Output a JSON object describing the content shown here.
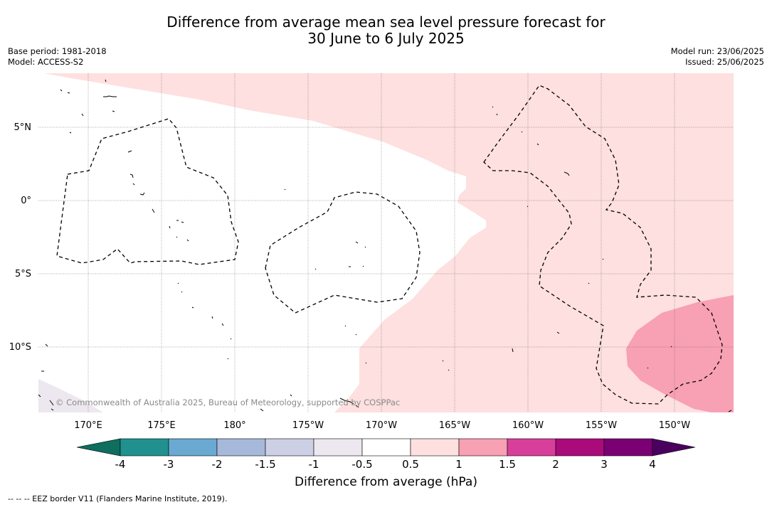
{
  "title": {
    "line1": "Difference from average mean sea level pressure forecast for",
    "line2": "30 June to 6 July 2025"
  },
  "meta_left": {
    "base_period": "Base period: 1981-2018",
    "model": "Model: ACCESS-S2"
  },
  "meta_right": {
    "model_run": "Model run: 23/06/2025",
    "issued": "Issued: 25/06/2025"
  },
  "map": {
    "copyright": "© Commonwealth of Australia 2025, Bureau of Meteorology, supported by COSPPac",
    "lat_labels": [
      "5°N",
      "0°",
      "5°S",
      "10°S"
    ],
    "lon_labels": [
      "170°E",
      "175°E",
      "180°",
      "175°W",
      "170°W",
      "165°W",
      "160°W",
      "155°W",
      "150°W"
    ]
  },
  "colorbar": {
    "title": "Difference from average (hPa)",
    "tick_labels": [
      "-4",
      "-3",
      "-2",
      "-1.5",
      "-1",
      "-0.5",
      "0.5",
      "1",
      "1.5",
      "2",
      "3",
      "4"
    ],
    "colors": [
      "#0f6e5e",
      "#20918f",
      "#6aa9d1",
      "#a7b9da",
      "#cdcfe5",
      "#ede7ef",
      "#ffffff",
      "#fde0df",
      "#f8a0b4",
      "#d83f9a",
      "#aa0b7a",
      "#7a0074",
      "#4a005e"
    ],
    "under_color": "#0f6e5e",
    "over_color": "#4a005e"
  },
  "footnote": "--  --  -- EEZ border V11 (Flanders Marine Institute, 2019)."
}
